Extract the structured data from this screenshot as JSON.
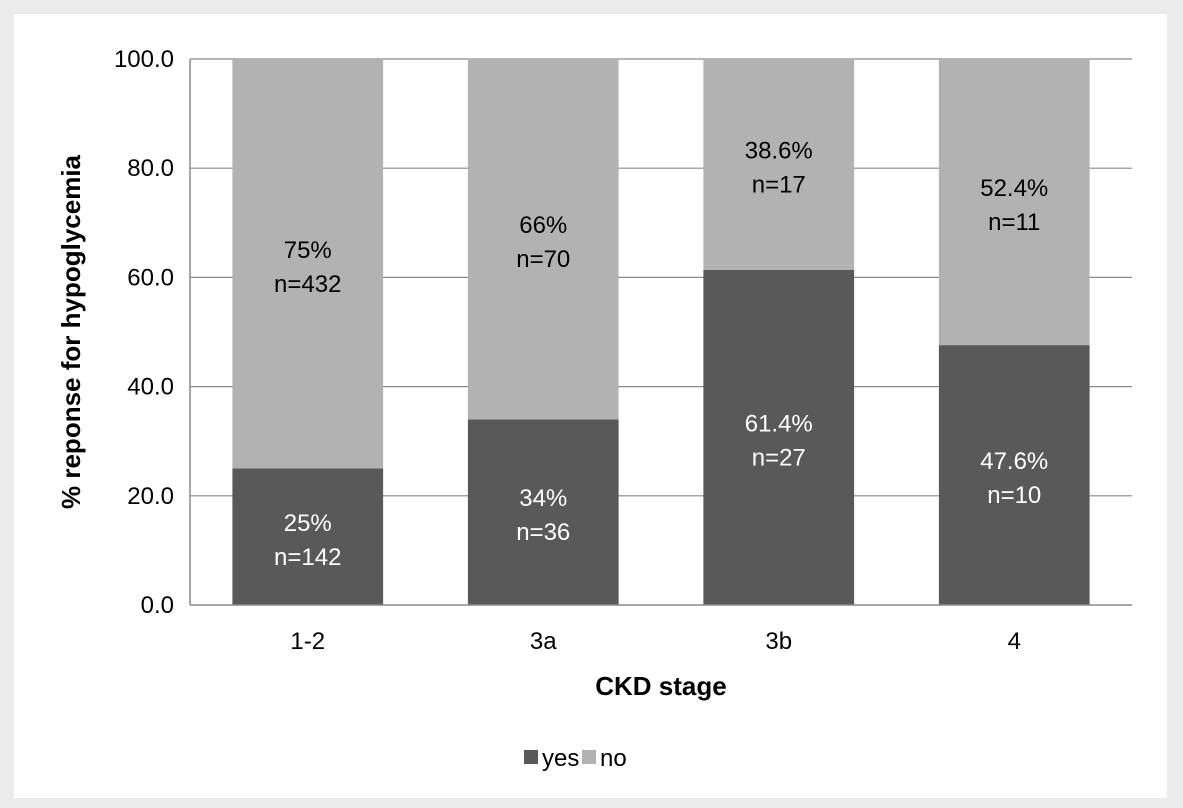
{
  "chart_data": {
    "type": "bar",
    "stacked": true,
    "categories": [
      "1-2",
      "3a",
      "3b",
      "4"
    ],
    "series": [
      {
        "name": "yes",
        "color": "#595959",
        "label_color": "#ffffff",
        "values": [
          25,
          34,
          61.4,
          47.6
        ],
        "labels": [
          "25%",
          "34%",
          "61.4%",
          "47.6%"
        ],
        "counts": [
          "n=142",
          "n=36",
          "n=27",
          "n=10"
        ]
      },
      {
        "name": "no",
        "color": "#b2b2b2",
        "label_color": "#000000",
        "values": [
          75,
          66,
          38.6,
          52.4
        ],
        "labels": [
          "75%",
          "66%",
          "38.6%",
          "52.4%"
        ],
        "counts": [
          "n=432",
          "n=70",
          "n=17",
          "n=11"
        ]
      }
    ],
    "xlabel": "CKD stage",
    "ylabel": "% reponse  for hypoglycemia",
    "ylim": [
      0,
      100
    ],
    "yticks": [
      "0.0",
      "20.0",
      "40.0",
      "60.0",
      "80.0",
      "100.0"
    ],
    "grid": true,
    "legend_position": "bottom"
  }
}
